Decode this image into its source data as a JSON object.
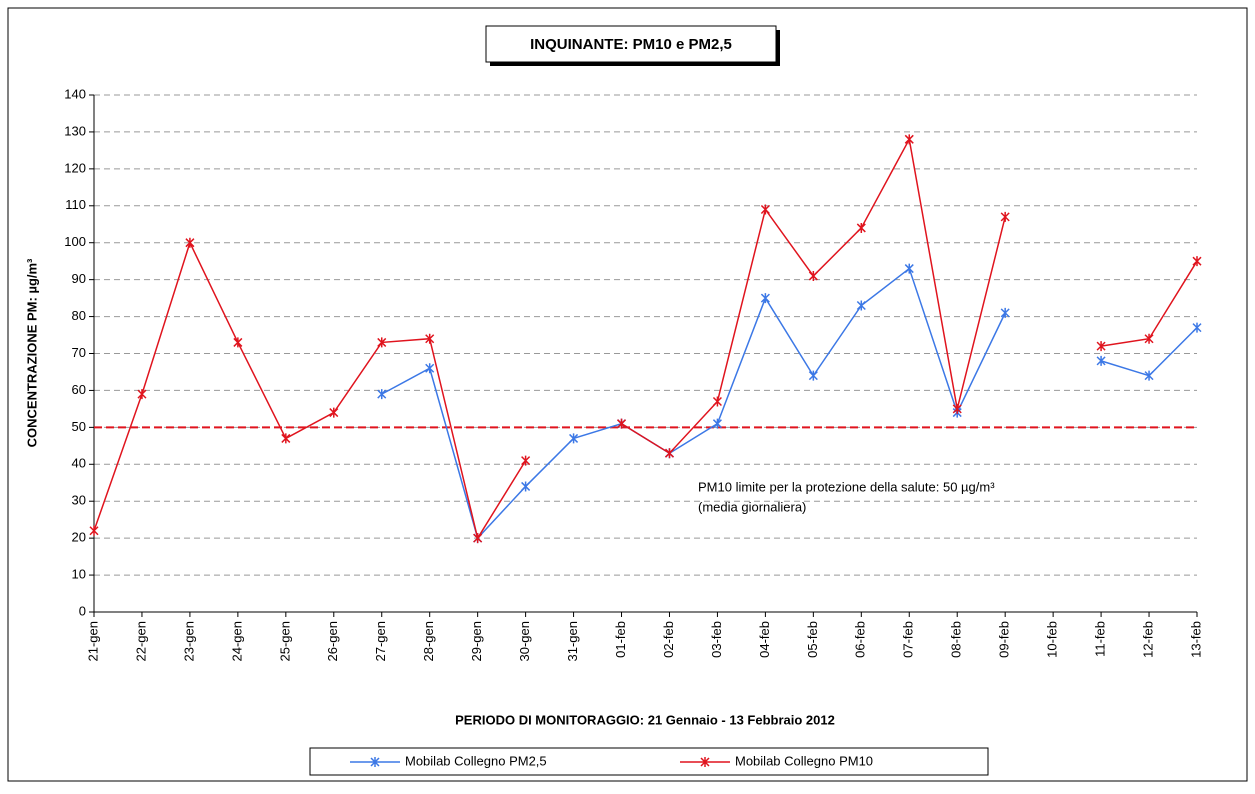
{
  "chart_data": {
    "type": "line",
    "title": "INQUINANTE: PM10 e PM2,5",
    "x_label": "PERIODO DI MONITORAGGIO: 21 Gennaio - 13 Febbraio 2012",
    "y_label": "CONCENTRAZIONE PM: µg/m³",
    "categories": [
      "21-gen",
      "22-gen",
      "23-gen",
      "24-gen",
      "25-gen",
      "26-gen",
      "27-gen",
      "28-gen",
      "29-gen",
      "30-gen",
      "31-gen",
      "01-feb",
      "02-feb",
      "03-feb",
      "04-feb",
      "05-feb",
      "06-feb",
      "07-feb",
      "08-feb",
      "09-feb",
      "10-feb",
      "11-feb",
      "12-feb",
      "13-feb"
    ],
    "series": [
      {
        "name": "Mobilab Collegno PM2,5",
        "color": "#3c78e6",
        "values": [
          null,
          null,
          null,
          null,
          null,
          null,
          59,
          66,
          20,
          34,
          47,
          51,
          43,
          51,
          85,
          64,
          83,
          93,
          54,
          81,
          null,
          68,
          64,
          77
        ]
      },
      {
        "name": "Mobilab Collegno PM10",
        "color": "#e0141e",
        "values": [
          22,
          59,
          100,
          73,
          47,
          54,
          73,
          74,
          20,
          41,
          null,
          51,
          43,
          57,
          109,
          91,
          104,
          128,
          55,
          107,
          null,
          72,
          74,
          95
        ]
      }
    ],
    "reference_line": {
      "value": 50,
      "color": "#e0141e"
    },
    "annotation": [
      "PM10 limite per la protezione della salute: 50 µg/m³",
      "(media giornaliera)"
    ],
    "ylim": [
      0,
      140
    ],
    "yticks": [
      0,
      10,
      20,
      30,
      40,
      50,
      60,
      70,
      80,
      90,
      100,
      110,
      120,
      130,
      140
    ],
    "grid": true
  }
}
